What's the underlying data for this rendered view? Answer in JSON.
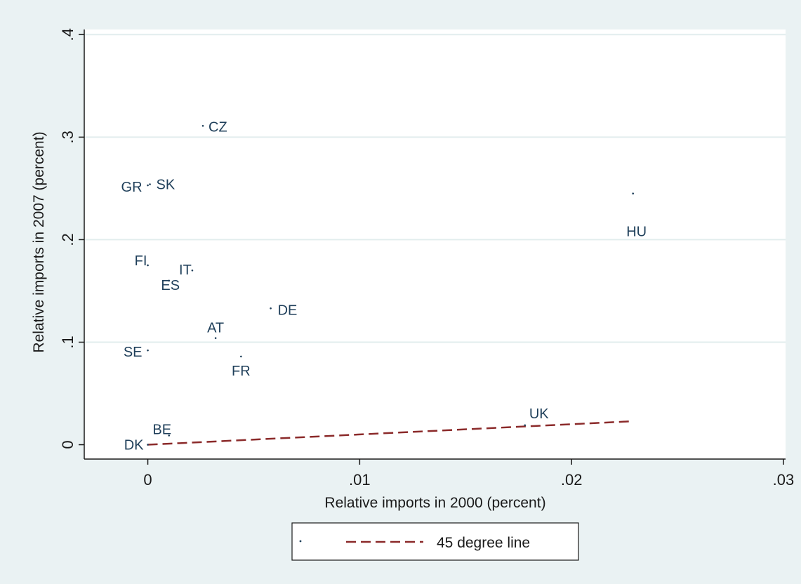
{
  "chart_data": {
    "type": "scatter",
    "title": "",
    "xlabel": "Relative imports in 2000 (percent)",
    "ylabel": "Relative imports in 2007 (percent)",
    "xlim": [
      -0.003,
      0.0301
    ],
    "ylim": [
      -0.014,
      0.405
    ],
    "xticks": [
      {
        "value": 0,
        "label": "0"
      },
      {
        "value": 0.01,
        "label": ".01"
      },
      {
        "value": 0.02,
        "label": ".02"
      },
      {
        "value": 0.03,
        "label": ".03"
      }
    ],
    "yticks": [
      {
        "value": 0,
        "label": "0"
      },
      {
        "value": 0.1,
        "label": ".1"
      },
      {
        "value": 0.2,
        "label": ".2"
      },
      {
        "value": 0.3,
        "label": ".3"
      },
      {
        "value": 0.4,
        "label": ".4"
      }
    ],
    "grid": {
      "horizontal": true,
      "vertical": false
    },
    "series": [
      {
        "name": "",
        "kind": "scatter",
        "color": "#1f3f5a",
        "points": [
          {
            "label": "CZ",
            "x": 0.0026,
            "y": 0.311
          },
          {
            "label": "GR",
            "x": 0.0,
            "y": 0.253
          },
          {
            "label": "SK",
            "x": 0.0001,
            "y": 0.254
          },
          {
            "label": "HU",
            "x": 0.0229,
            "y": 0.245
          },
          {
            "label": "FI",
            "x": 0.0,
            "y": 0.175
          },
          {
            "label": "IT",
            "x": 0.0021,
            "y": 0.17
          },
          {
            "label": "ES",
            "x": 0.001,
            "y": 0.16
          },
          {
            "label": "DE",
            "x": 0.0058,
            "y": 0.133
          },
          {
            "label": "AT",
            "x": 0.0032,
            "y": 0.104
          },
          {
            "label": "SE",
            "x": 0.0,
            "y": 0.092
          },
          {
            "label": "FR",
            "x": 0.0044,
            "y": 0.086
          },
          {
            "label": "BE",
            "x": 0.001,
            "y": 0.009
          },
          {
            "label": "DK",
            "x": 0.0,
            "y": 0.0
          },
          {
            "label": "UK",
            "x": 0.0178,
            "y": 0.019
          }
        ]
      },
      {
        "name": "45 degree line",
        "kind": "line",
        "style": "dashed",
        "color": "#8b2a2a",
        "points": [
          {
            "x": 0,
            "y": 0
          },
          {
            "x": 0.0229,
            "y": 0.0229
          }
        ]
      }
    ],
    "legend": {
      "placement": "bottom-center",
      "entries": [
        "45 degree line"
      ]
    }
  },
  "colors": {
    "background": "#eaf2f3",
    "plot_background": "#ffffff",
    "gridline": "#e2edee",
    "marker": "#1f3f5a",
    "line": "#8b2a2a"
  }
}
